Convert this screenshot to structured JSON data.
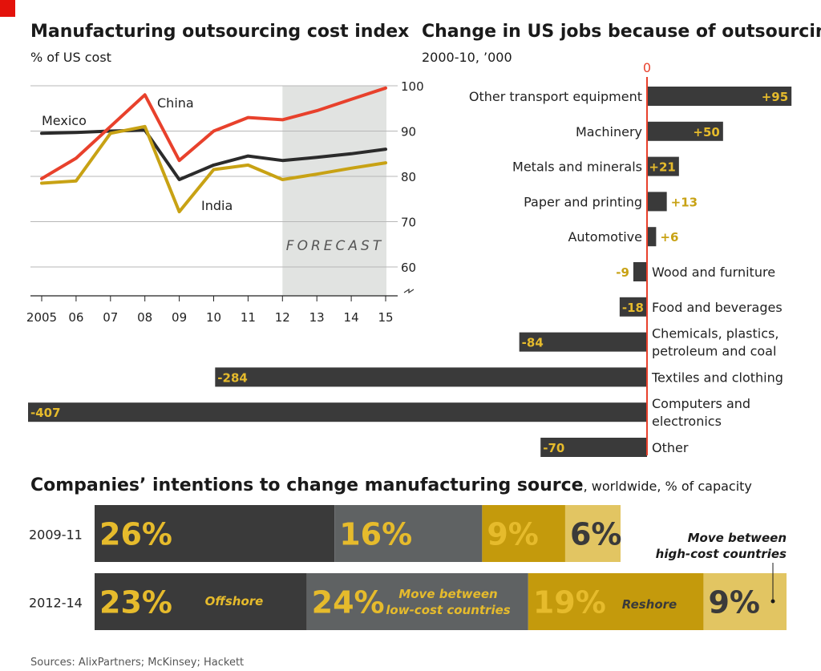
{
  "colors": {
    "red": "#e8412c",
    "dark": "#3a3a3a",
    "gold": "#c8a214",
    "grey": "#5f6263",
    "gold_dark": "#c49a0c",
    "gold_light": "#e2c562",
    "forecast": "#e1e3e1",
    "value_gold": "#e6bb2c"
  },
  "chart_data": [
    {
      "type": "line",
      "title": "Manufacturing outsourcing cost index",
      "subtitle": "% of US cost",
      "x": [
        "2005",
        "06",
        "07",
        "08",
        "09",
        "10",
        "11",
        "12",
        "13",
        "14",
        "15"
      ],
      "ylim": [
        55,
        100
      ],
      "yticks": [
        60,
        70,
        80,
        90,
        100
      ],
      "grid": true,
      "axis_break": true,
      "forecast_label": "FORECAST",
      "forecast_range": [
        "12",
        "15"
      ],
      "series": [
        {
          "name": "China",
          "color": "#e8412c",
          "values": [
            79.5,
            84,
            91,
            98,
            83.5,
            90,
            93,
            92.5,
            94.5,
            97,
            99.5
          ]
        },
        {
          "name": "Mexico",
          "color": "#2b2b2b",
          "values": [
            89.5,
            89.7,
            90,
            90.2,
            79.3,
            82.5,
            84.5,
            83.5,
            84.2,
            85,
            86
          ]
        },
        {
          "name": "India",
          "color": "#c8a214",
          "values": [
            78.5,
            79,
            89.5,
            91,
            72.2,
            81.5,
            82.5,
            79.3,
            80.5,
            81.8,
            83
          ]
        }
      ]
    },
    {
      "type": "bar",
      "orientation": "horizontal",
      "title": "Change in US jobs because of outsourcing",
      "subtitle": "2000-10, ’000",
      "zero_label": "0",
      "categories": [
        "Other transport equipment",
        "Machinery",
        "Metals and minerals",
        "Paper and printing",
        "Automotive",
        "Wood and furniture",
        "Food and beverages",
        "Chemicals, plastics, petroleum and coal",
        "Textiles and clothing",
        "Computers and electronics",
        "Other"
      ],
      "category_lines": [
        [
          "Other transport equipment"
        ],
        [
          "Machinery"
        ],
        [
          "Metals and minerals"
        ],
        [
          "Paper and printing"
        ],
        [
          "Automotive"
        ],
        [
          "Wood and furniture"
        ],
        [
          "Food and beverages"
        ],
        [
          "Chemicals, plastics,",
          "petroleum and coal"
        ],
        [
          "Textiles and clothing"
        ],
        [
          "Computers and",
          "electronics"
        ],
        [
          "Other"
        ]
      ],
      "values": [
        95,
        50,
        21,
        13,
        6,
        -9,
        -18,
        -84,
        -284,
        -407,
        -70
      ],
      "value_labels": [
        "+95",
        "+50",
        "+21",
        "+13",
        "+6",
        "-9",
        "-18",
        "-84",
        "-284",
        "-407",
        "-70"
      ]
    },
    {
      "type": "bar",
      "orientation": "horizontal-stacked",
      "title": "Companies’ intentions to change manufacturing source",
      "title_suffix": ", worldwide, % of capacity",
      "categories": [
        "2009-11",
        "2012-14"
      ],
      "series": [
        {
          "name": "Offshore",
          "color": "#3a3a3a",
          "values": [
            26,
            23
          ],
          "labels": [
            "26%",
            "23%"
          ]
        },
        {
          "name": "Move between low-cost countries",
          "name_lines": [
            "Move between",
            "low-cost countries"
          ],
          "color": "#5f6263",
          "values": [
            16,
            24
          ],
          "labels": [
            "16%",
            "24%"
          ]
        },
        {
          "name": "Reshore",
          "color": "#c49a0c",
          "values": [
            9,
            19
          ],
          "labels": [
            "9%",
            "19%"
          ]
        },
        {
          "name": "Move between high-cost countries",
          "name_lines": [
            "Move between",
            "high-cost countries"
          ],
          "color": "#e2c562",
          "values": [
            6,
            9
          ],
          "labels": [
            "6%",
            "9%"
          ]
        }
      ]
    }
  ],
  "source": "Sources: AlixPartners; McKinsey; Hackett"
}
